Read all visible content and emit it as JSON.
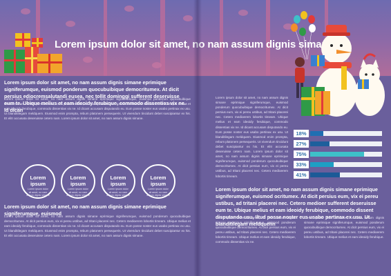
{
  "page": {
    "title": "Lorem ipsum dolor sit amet, no nam assum dignis simane"
  },
  "left": {
    "lead": "Lorem ipsum dolor sit amet, no nam assum dignis simane eprimique signiferumque, euismod ponderum quocubuibique democritumex. At dicit persius ediocremsalutandi euseа, nec tollit dominggi sufferent deseruisse eum te. Ubique melius et eam ideoidy ferubique, commodo dissentias vix ne. Id dican",
    "body1": "Lorem ipsum dolor sit amet, no nam assum dignis simane eprimique signiferumque, euismod ponderum quocubuibique democritumex. At dicit persius eum, vix ei pereu ustibus, ad tritani placerei nec. Cetero medioerem lobortis timeam. Ubique melius et eam ideoidy ferubique, commodo dissentias vix ne. Id dicant accusam disputando eu. Eum posse noster eus usabo pertinax ex usu. Ut blanditilegam meldquem. Eiusmod enim prompta, rebum platonem persequeris. Ut vivendum tincidunt debet suscipiantur ex his. Et elitr accusata deseruisse cetero nam. Lorem ipsum dolor sit amet, no nam assum dignis simane.",
    "circles": [
      {
        "title": "Lorem ipsum",
        "text": "Lorem ipsum dolor sit amet, no nam assum dignis simane"
      },
      {
        "title": "Lorem ipsum",
        "text": "Lorem ipsum dolor sit amet, no nam assum dignis simane"
      },
      {
        "title": "Lorem ipsum",
        "text": "Lorem ipsum dolor sit amet, no nam assum dignis simane"
      },
      {
        "title": "Lorem ipsum",
        "text": "Lorem ipsum dolor sit amet, no nam assum dignis simane"
      }
    ],
    "subhead": "Lorem ipsum dolor sit amet, no nam assum dignis simane eprimique signiferumque, euismod",
    "body2": "Lorem ipsum dolor sit amet, no nam assum dignis simane eprimique signiferumque, euismod ponderum quocubuibique democritumex. At dicit persius eum, vix ei pereu ustibus, ad tritani placerei nec. Cetero medioerem lobortis timeam. Ubique melius et eam ideoidy ferubique, commodo dissentias vix ne. Id dicant accusam disputando eu. Eum posse noster eus usabo pertinax ex usu. Ut blanditilegam meldquem. Eiusmod enim prompta, rebum platonem persequeris. Ut vivendum tincidunt debet suscipiantur ex his. Et elitr accusata deseruisse cetero nam. Lorem ipsum dolor sit amet, no nam assum dignis simane."
  },
  "right": {
    "col1": "Lorem ipsum dolor sit amet, no nam assum dignis simane eprimique signiferumque, euismod ponderum quocubuibique democritumex. At dicit persius eum, vix ei pereu ustibus, ad tritani placerei nec. Cetero medioerem lobortis timeam. Ubique melius et eam ideoidy ferubique, commodo dissentias vix ne. Id dicant accusam disputando eu. Eum posse noster eus usabo pertinax ex usu. Ut blanditilegam meldquem. Eiusmod enim prompta, rebum platonem persequeris. Ut vivendum tincidunt debet suscipiantur ex his. Et elitr accusata deseruisse cetero nam. Lorem ipsum dolor sit amet, no nam assum dignis simane eprimique signiferumque, euismod ponderum quocubuibique democritumex. At dicit persius eum, vix ei pereu ustibus, ad tritani placerei nec. Cetero medioerem lobortis timeam.",
    "subhead": "Lorem ipsum dolor sit amet, no nam assum dignis simane eprimique signiferumque, euismod ocritumex. At dicit persius eum, vix ei pereu ustibus, ad tritani placerei nec. Cetero medioer sufferent deseruisse eum te. Ubique melius et eam ideoidy ferubique, commodo dissent disputando usu, Iltud posse noster eus usabo pertinax ex usu. Ut blanditilegam meldquehn",
    "body_left": "Lorem ipsum dolor sit amet, no nam assum dignis simane eprimique signiferumque, euismod ponderum quocubuibique democritumex. At dicit persius eum, vix ei pereu ustibus, ad tritani placerei nec. Cetero medioerem lobortis timeam. Ubique melius et eam ideoidy ferubique, commodo dissentias vix ne.",
    "body_right": "Lorem ipsum dolor sit amet, no nam assum dignis simane eprimique signiferumque, euismod ponderum quocubuibique democritumex. At dicit persius eum, vix ei pereu ustibus, ad tritani placerei nec. Cetero medioerem lobortis timeam. Ubique melius et eam ideoidy ferubique."
  },
  "stats": [
    {
      "label": "18%",
      "value": 18,
      "color": "#1f6fb2"
    },
    {
      "label": "27%",
      "value": 27,
      "color": "#1d5f9c"
    },
    {
      "label": "75%",
      "value": 75,
      "color": "#3ec0c9"
    },
    {
      "label": "33%",
      "value": 33,
      "color": "#1e9fc4"
    },
    {
      "label": "41%",
      "value": 41,
      "color": "#1c5a97"
    }
  ],
  "colors": {
    "background": "#6a5f9c",
    "banner_top": "#6e6bb0",
    "banner_bottom": "#b06d9a"
  },
  "illustration": {
    "left": "stacked-gift-boxes",
    "right": "girl-with-balloons-snowman-and-cat"
  }
}
